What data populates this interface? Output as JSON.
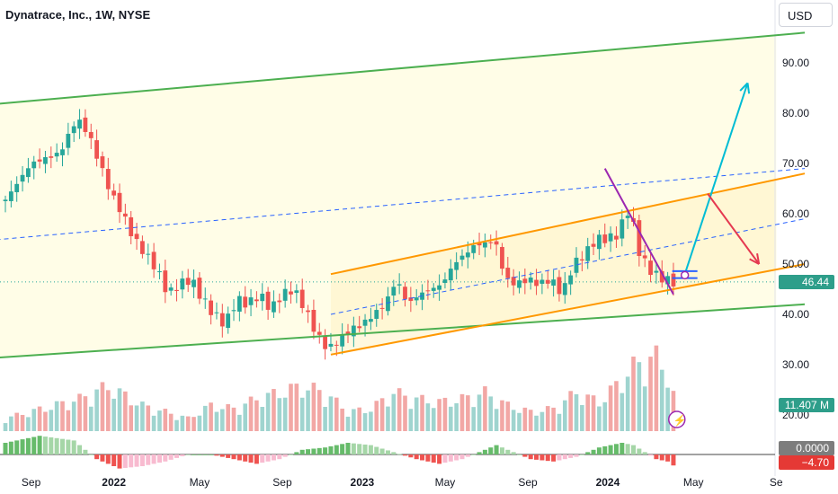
{
  "title": "Dynatrace, Inc., 1W, NYSE",
  "currency": "USD",
  "colors": {
    "up": "#26a69a",
    "down": "#ef5350",
    "vol_up": "#9fd4cf",
    "vol_down": "#f2a7a5",
    "channel_outer": "#4caf50",
    "channel_inner": "#ff9800",
    "midline": "#2962ff",
    "trend_line": "#9c27b0",
    "bull_arrow": "#00bcd4",
    "bear_arrow": "#e53950",
    "hist_pos_strong": "#66bb6a",
    "hist_pos_weak": "#a5d6a7",
    "hist_neg_strong": "#ef5350",
    "hist_neg_weak": "#f8bbd0",
    "fill_yellow": "#fffde7"
  },
  "chart_data": {
    "type": "candlestick",
    "price_axis": {
      "ylim": [
        20,
        100
      ],
      "ticks": [
        "90.00",
        "80.00",
        "70.00",
        "60.00",
        "50.00",
        "40.00",
        "30.00",
        "20.00"
      ],
      "tick_values": [
        90,
        80,
        70,
        60,
        50,
        40,
        30,
        20
      ]
    },
    "time_axis": {
      "labels": [
        "Sep",
        "2022",
        "May",
        "Sep",
        "2023",
        "May",
        "Sep",
        "2024",
        "May",
        "Se"
      ]
    },
    "last_price": "46.44",
    "volume_label": "11.407 M",
    "oscillator_labels": [
      "0.0000",
      "−4.70"
    ],
    "price_path": [
      [
        0,
        62
      ],
      [
        5,
        70
      ],
      [
        10,
        72
      ],
      [
        13,
        79
      ],
      [
        15,
        76
      ],
      [
        17,
        70
      ],
      [
        19,
        64
      ],
      [
        21,
        60
      ],
      [
        23,
        55
      ],
      [
        25,
        52
      ],
      [
        27,
        49
      ],
      [
        29,
        44
      ],
      [
        31,
        46
      ],
      [
        33,
        47
      ],
      [
        35,
        43
      ],
      [
        37,
        40
      ],
      [
        39,
        38
      ],
      [
        41,
        43
      ],
      [
        43,
        42
      ],
      [
        45,
        44
      ],
      [
        47,
        41
      ],
      [
        49,
        44
      ],
      [
        51,
        45
      ],
      [
        53,
        41
      ],
      [
        55,
        36
      ],
      [
        57,
        33
      ],
      [
        59,
        35
      ],
      [
        61,
        37
      ],
      [
        63,
        38
      ],
      [
        65,
        40
      ],
      [
        67,
        42
      ],
      [
        69,
        47
      ],
      [
        71,
        42
      ],
      [
        73,
        44
      ],
      [
        75,
        45
      ],
      [
        77,
        46
      ],
      [
        79,
        50
      ],
      [
        81,
        52
      ],
      [
        83,
        54
      ],
      [
        85,
        54
      ],
      [
        86,
        55
      ],
      [
        87,
        52
      ],
      [
        88,
        47
      ],
      [
        90,
        46
      ],
      [
        92,
        47
      ],
      [
        94,
        46
      ],
      [
        96,
        47
      ],
      [
        98,
        44
      ],
      [
        100,
        50
      ],
      [
        102,
        52
      ],
      [
        104,
        55
      ],
      [
        106,
        55
      ],
      [
        108,
        56
      ],
      [
        109,
        60
      ],
      [
        110,
        61
      ],
      [
        111,
        54
      ],
      [
        112,
        51
      ],
      [
        114,
        48
      ],
      [
        116,
        47
      ],
      [
        117,
        46.44
      ]
    ],
    "volume_path": [
      [
        0,
        4
      ],
      [
        13,
        10
      ],
      [
        18,
        14
      ],
      [
        24,
        8
      ],
      [
        28,
        6
      ],
      [
        32,
        4
      ],
      [
        36,
        8
      ],
      [
        40,
        7
      ],
      [
        44,
        10
      ],
      [
        48,
        12
      ],
      [
        52,
        14
      ],
      [
        56,
        12
      ],
      [
        60,
        6
      ],
      [
        64,
        7
      ],
      [
        68,
        12
      ],
      [
        72,
        10
      ],
      [
        76,
        9
      ],
      [
        80,
        10
      ],
      [
        84,
        12
      ],
      [
        88,
        8
      ],
      [
        92,
        6
      ],
      [
        96,
        7
      ],
      [
        100,
        12
      ],
      [
        104,
        9
      ],
      [
        108,
        16
      ],
      [
        110,
        20
      ],
      [
        112,
        22
      ],
      [
        114,
        23
      ],
      [
        116,
        18
      ],
      [
        117,
        11.407
      ]
    ],
    "oscillator_path": [
      [
        0,
        5
      ],
      [
        6,
        8
      ],
      [
        12,
        6
      ],
      [
        16,
        -2
      ],
      [
        20,
        -6
      ],
      [
        24,
        -5
      ],
      [
        28,
        -3
      ],
      [
        32,
        0
      ],
      [
        36,
        0
      ],
      [
        40,
        -2
      ],
      [
        44,
        -4
      ],
      [
        48,
        -2
      ],
      [
        52,
        2
      ],
      [
        56,
        3
      ],
      [
        60,
        5
      ],
      [
        64,
        4
      ],
      [
        68,
        1
      ],
      [
        72,
        -2
      ],
      [
        76,
        -4
      ],
      [
        80,
        -2
      ],
      [
        84,
        2
      ],
      [
        86,
        4
      ],
      [
        88,
        2
      ],
      [
        92,
        -2
      ],
      [
        96,
        -3
      ],
      [
        100,
        -1
      ],
      [
        104,
        3
      ],
      [
        108,
        5
      ],
      [
        110,
        4
      ],
      [
        112,
        1
      ],
      [
        114,
        -2
      ],
      [
        116,
        -3
      ],
      [
        117,
        -4.7
      ]
    ],
    "drawings": [
      {
        "type": "outer_channel_upper",
        "from": [
          -20,
          80
        ],
        "to": [
          140,
          96
        ]
      },
      {
        "type": "outer_channel_lower",
        "from": [
          -20,
          30
        ],
        "to": [
          140,
          42
        ]
      },
      {
        "type": "inner_channel_upper",
        "from": [
          57,
          48
        ],
        "to": [
          140,
          68
        ]
      },
      {
        "type": "inner_channel_lower",
        "from": [
          57,
          32
        ],
        "to": [
          140,
          50
        ]
      },
      {
        "type": "midline_outer",
        "from": [
          -20,
          53
        ],
        "to": [
          140,
          69
        ]
      },
      {
        "type": "midline_inner",
        "from": [
          57,
          40
        ],
        "to": [
          140,
          59
        ]
      },
      {
        "type": "trend_line",
        "from": [
          105,
          69
        ],
        "to": [
          117,
          44
        ]
      },
      {
        "type": "bull_arrow",
        "from": [
          119,
          48
        ],
        "to": [
          130,
          86
        ]
      },
      {
        "type": "bear_arrow",
        "from": [
          123,
          64
        ],
        "to": [
          132,
          50
        ]
      }
    ]
  }
}
